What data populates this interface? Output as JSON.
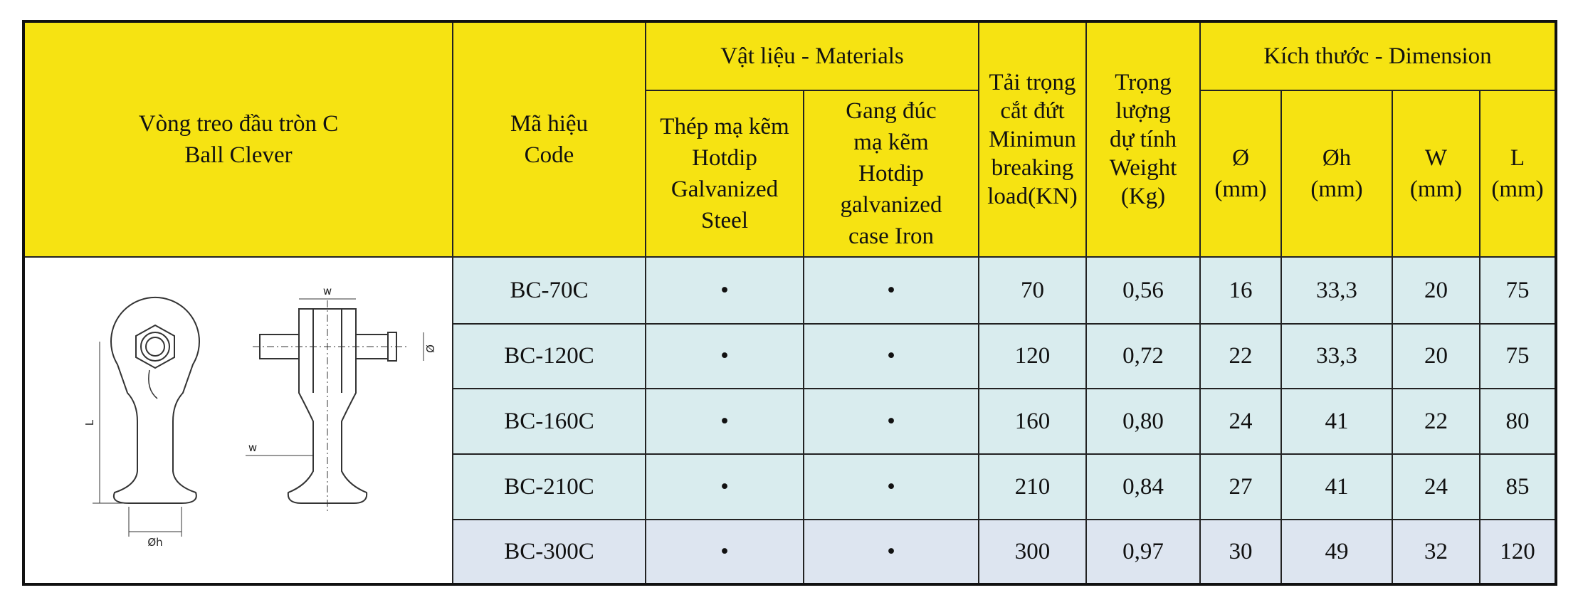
{
  "header": {
    "product": [
      "Vòng treo đầu tròn C",
      "Ball Clever"
    ],
    "code": [
      "Mã hiệu",
      "Code"
    ],
    "materials": "Vật liệu - Materials",
    "steel": [
      "Thép mạ kẽm",
      "Hotdip",
      "Galvanized",
      "Steel"
    ],
    "iron": [
      "Gang đúc",
      "mạ kẽm",
      "Hotdip",
      "galvanized",
      "case Iron"
    ],
    "load": [
      "Tải trọng",
      "cắt đứt",
      "Minimun",
      "breaking",
      "load(KN)"
    ],
    "weight": [
      "Trọng",
      "lượng",
      "dự tính",
      "Weight",
      "(Kg)"
    ],
    "dimension": "Kích thước - Dimension",
    "dims": [
      [
        "Ø",
        "(mm)"
      ],
      [
        "Øh",
        "(mm)"
      ],
      [
        "W",
        "(mm)"
      ],
      [
        "L",
        "(mm)"
      ]
    ]
  },
  "diagram": {
    "labels": {
      "w_top": "w",
      "w_side": "w",
      "L": "L",
      "phi_h": "Øh",
      "phi": "Ø"
    }
  },
  "table": {
    "rows": [
      [
        "BC-70C",
        "•",
        "•",
        "70",
        "0,56",
        "16",
        "33,3",
        "20",
        "75"
      ],
      [
        "BC-120C",
        "•",
        "•",
        "120",
        "0,72",
        "22",
        "33,3",
        "20",
        "75"
      ],
      [
        "BC-160C",
        "•",
        "•",
        "160",
        "0,80",
        "24",
        "41",
        "22",
        "80"
      ],
      [
        "BC-210C",
        "•",
        "•",
        "210",
        "0,84",
        "27",
        "41",
        "24",
        "85"
      ],
      [
        "BC-300C",
        "•",
        "•",
        "300",
        "0,97",
        "30",
        "49",
        "32",
        "120"
      ]
    ]
  }
}
